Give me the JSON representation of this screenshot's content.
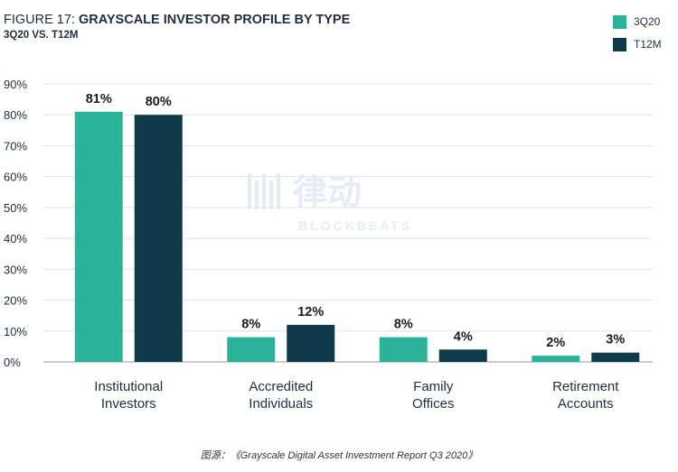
{
  "title_prefix": "FIGURE 17:",
  "title_main": "GRAYSCALE INVESTOR PROFILE BY TYPE",
  "subtitle": "3Q20 VS. T12M",
  "source_caption": "图源：《Grayscale Digital Asset Investment Report Q3 2020》",
  "watermark": {
    "brand": "律动",
    "sub": "BLOCKBEATS"
  },
  "chart_data": {
    "type": "bar",
    "categories": [
      "Institutional\nInvestors",
      "Accredited\nIndividuals",
      "Family\nOffices",
      "Retirement\nAccounts"
    ],
    "series": [
      {
        "name": "3Q20",
        "color": "#2bb39a",
        "values": [
          81,
          8,
          8,
          2
        ]
      },
      {
        "name": "T12M",
        "color": "#0e3a4a",
        "values": [
          80,
          12,
          4,
          3
        ]
      }
    ],
    "value_labels_format": "{v}%",
    "ylim": [
      0,
      90
    ],
    "yticks": [
      0,
      10,
      20,
      30,
      40,
      50,
      60,
      70,
      80,
      90
    ],
    "ytick_format": "{v}%",
    "grid": true,
    "legend_position": "top-right"
  }
}
